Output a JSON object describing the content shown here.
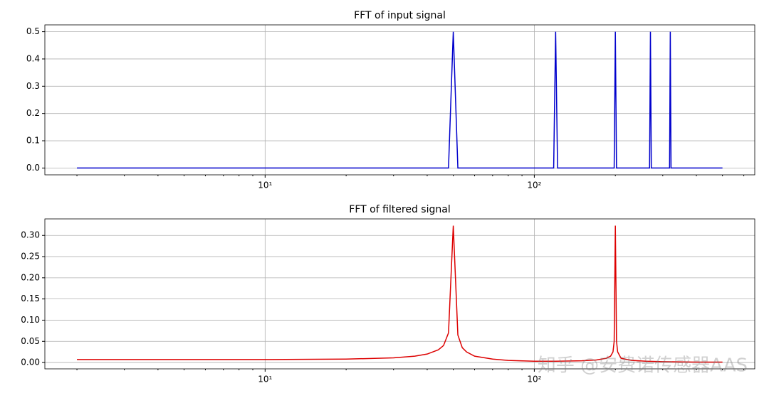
{
  "chart_data": [
    {
      "type": "line",
      "title": "FFT of input signal",
      "xscale": "log",
      "grid": true,
      "xlim": [
        1.52,
        659
      ],
      "ylim": [
        -0.025,
        0.525
      ],
      "xticks": [
        {
          "value": 10,
          "label": "10¹"
        },
        {
          "value": 100,
          "label": "10²"
        }
      ],
      "xminorticks": [
        2,
        3,
        4,
        5,
        6,
        7,
        8,
        9,
        20,
        30,
        40,
        50,
        60,
        70,
        80,
        90,
        200,
        300,
        400,
        500,
        600
      ],
      "yticks": [
        {
          "value": 0,
          "label": "0.0"
        },
        0.1,
        0.2,
        0.3,
        0.4,
        0.5
      ],
      "series": [
        {
          "color": "#0000cc",
          "x": [
            2,
            48,
            50,
            52,
            118,
            120,
            122,
            198,
            200,
            202,
            268,
            270,
            272,
            318,
            320,
            322,
            500
          ],
          "values": [
            0,
            0,
            0.5,
            0,
            0,
            0.5,
            0,
            0,
            0.5,
            0,
            0,
            0.5,
            0,
            0,
            0.5,
            0,
            0
          ]
        }
      ]
    },
    {
      "type": "line",
      "title": "FFT of filtered signal",
      "xscale": "log",
      "grid": true,
      "xlim": [
        1.52,
        659
      ],
      "ylim": [
        -0.015,
        0.339
      ],
      "xticks": [
        {
          "value": 10,
          "label": "10¹"
        },
        {
          "value": 100,
          "label": "10²"
        }
      ],
      "xminorticks": [
        2,
        3,
        4,
        5,
        6,
        7,
        8,
        9,
        20,
        30,
        40,
        50,
        60,
        70,
        80,
        90,
        200,
        300,
        400,
        500,
        600
      ],
      "yticks": [
        {
          "value": 0,
          "label": "0.00"
        },
        0.05,
        {
          "value": 0.1,
          "label": "0.10"
        },
        0.15,
        {
          "value": 0.2,
          "label": "0.20"
        },
        0.25,
        {
          "value": 0.3,
          "label": "0.30"
        }
      ],
      "series": [
        {
          "color": "#dd0000",
          "x": [
            2,
            5,
            10,
            20,
            30,
            36,
            40,
            44,
            46,
            48,
            50,
            52,
            54,
            56,
            60,
            70,
            80,
            100,
            120,
            150,
            170,
            185,
            192,
            196,
            198,
            200,
            202,
            204,
            210,
            230,
            260,
            300,
            400,
            500
          ],
          "values": [
            0.007,
            0.007,
            0.007,
            0.008,
            0.011,
            0.015,
            0.02,
            0.03,
            0.04,
            0.07,
            0.323,
            0.065,
            0.035,
            0.025,
            0.015,
            0.008,
            0.005,
            0.003,
            0.003,
            0.004,
            0.006,
            0.01,
            0.015,
            0.025,
            0.05,
            0.323,
            0.05,
            0.025,
            0.01,
            0.005,
            0.003,
            0.002,
            0.001,
            0.001
          ]
        }
      ]
    }
  ],
  "watermark": "知乎 @安费诺传感器AAS"
}
